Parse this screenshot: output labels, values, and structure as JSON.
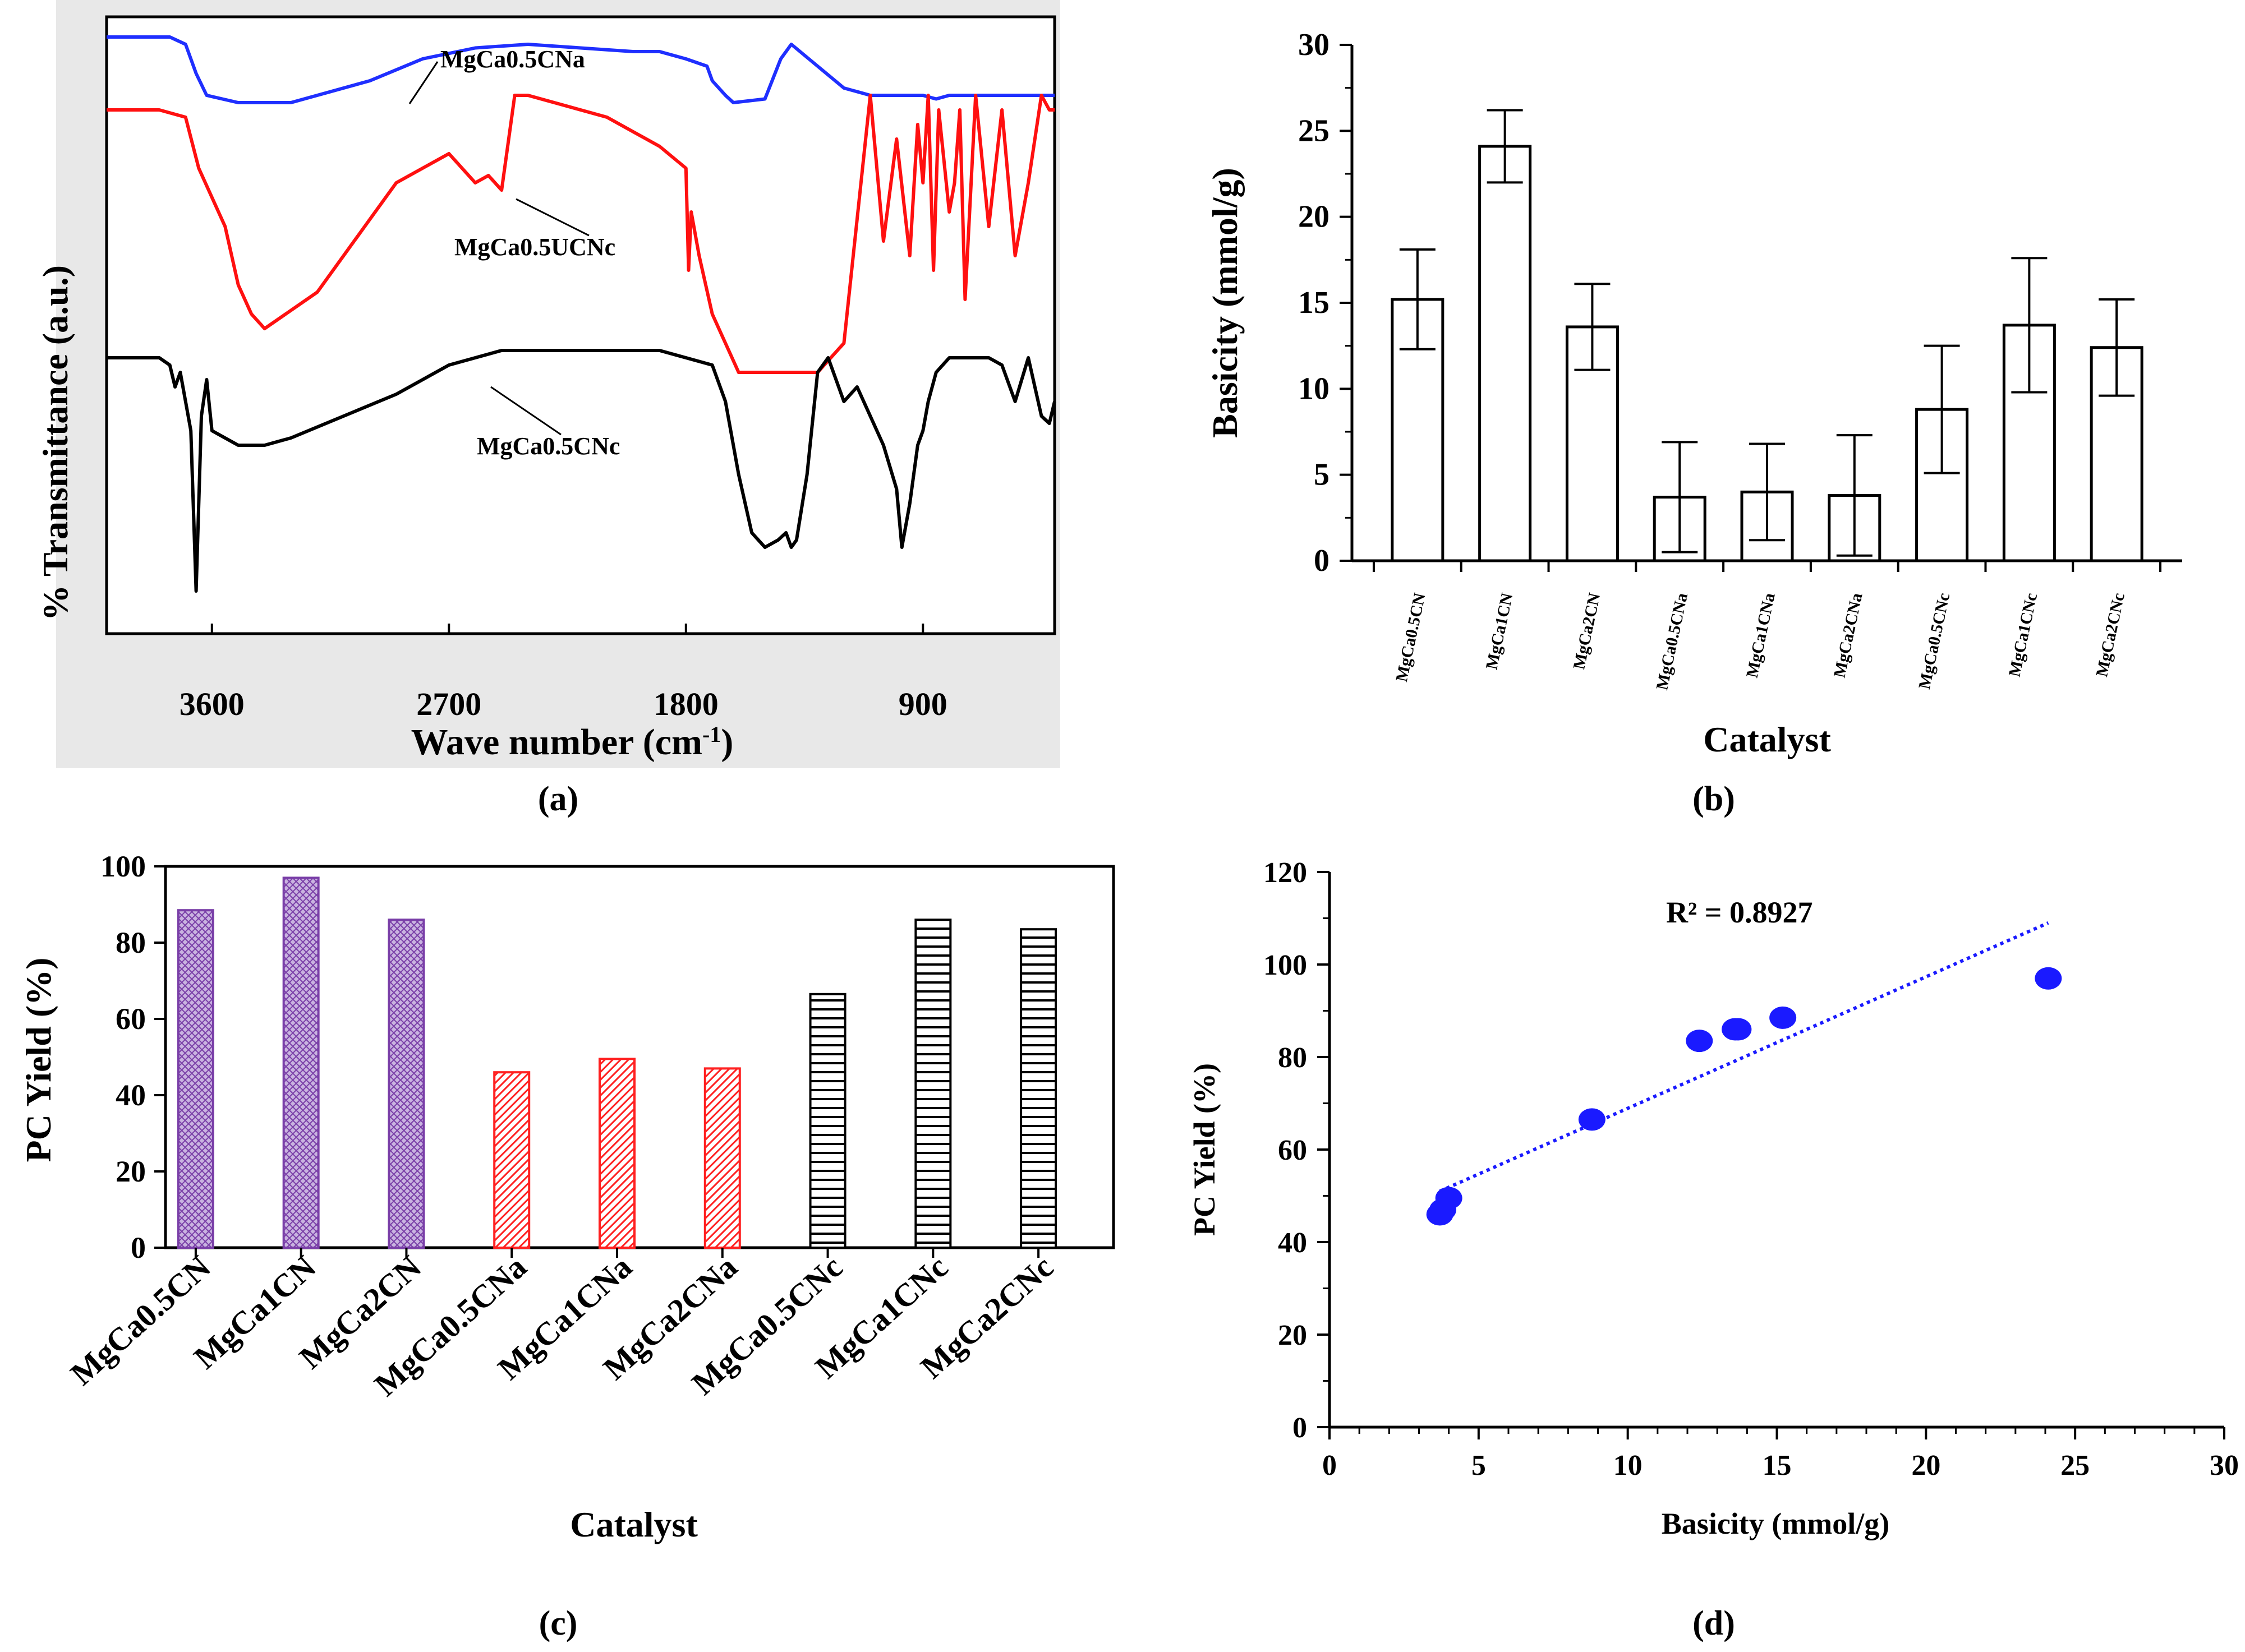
{
  "colors": {
    "blue": "#1f2fff",
    "red": "#ff1010",
    "black": "#000000",
    "purple": "#7a3fa8",
    "purpleFill": "#b59ad3",
    "redBar": "#ff3030",
    "scatter": "#1a1aff"
  },
  "chart_data": [
    {
      "panel": "a",
      "caption": "(a)",
      "type": "line",
      "title": "",
      "xlabel": "Wave number (cm",
      "xlabel_sup": "-1",
      "xlabel_end": ")",
      "ylabel": "% Transmittance (a.u.)",
      "xlim": [
        4000,
        400
      ],
      "xreversed": true,
      "ticks": [
        "3600",
        "2700",
        "1800",
        "900"
      ],
      "series": [
        {
          "name": "MgCa0.5CNa",
          "color": "#1f2fff",
          "x": [
            4000,
            3760,
            3700,
            3660,
            3620,
            3500,
            3400,
            3300,
            3000,
            2800,
            2600,
            2400,
            2200,
            2000,
            1900,
            1800,
            1720,
            1700,
            1650,
            1620,
            1500,
            1440,
            1400,
            1300,
            1200,
            1100,
            1000,
            900,
            850,
            800,
            700,
            600,
            500,
            400
          ],
          "y": [
            90,
            90,
            89,
            85,
            82,
            81,
            81,
            81,
            84,
            87,
            88.5,
            89,
            88.5,
            88,
            88,
            87,
            86,
            84,
            82,
            81,
            81.5,
            87,
            89,
            86,
            83,
            82,
            82,
            82,
            81.5,
            82,
            82,
            82,
            82,
            82
          ]
        },
        {
          "name": "MgCa0.5UCNc",
          "color": "#ff1010",
          "x": [
            4000,
            3800,
            3700,
            3650,
            3600,
            3550,
            3500,
            3450,
            3400,
            3200,
            3000,
            2900,
            2800,
            2700,
            2600,
            2550,
            2500,
            2450,
            2400,
            2300,
            2100,
            1900,
            1800,
            1790,
            1780,
            1750,
            1700,
            1600,
            1550,
            1500,
            1400,
            1300,
            1200,
            1100,
            1050,
            1000,
            950,
            920,
            900,
            880,
            860,
            840,
            800,
            780,
            760,
            740,
            700,
            650,
            600,
            550,
            500,
            450,
            420,
            400
          ],
          "y": [
            80,
            80,
            79,
            72,
            68,
            64,
            56,
            52,
            50,
            55,
            65,
            70,
            72,
            74,
            70,
            71,
            69,
            82,
            82,
            81,
            79,
            75,
            72,
            58,
            66,
            60,
            52,
            44,
            44,
            44,
            44,
            44,
            48,
            82,
            62,
            76,
            60,
            78,
            70,
            82,
            58,
            80,
            66,
            70,
            80,
            54,
            82,
            64,
            80,
            60,
            70,
            82,
            80,
            80
          ]
        },
        {
          "name": "MgCa0.5CNc",
          "color": "#000000",
          "x": [
            4000,
            3800,
            3760,
            3740,
            3720,
            3700,
            3680,
            3660,
            3640,
            3620,
            3600,
            3500,
            3400,
            3300,
            3100,
            2900,
            2700,
            2500,
            2300,
            2100,
            1900,
            1800,
            1700,
            1650,
            1600,
            1550,
            1500,
            1450,
            1420,
            1400,
            1380,
            1340,
            1300,
            1260,
            1200,
            1150,
            1100,
            1050,
            1000,
            980,
            950,
            920,
            900,
            880,
            850,
            800,
            750,
            700,
            650,
            600,
            550,
            500,
            450,
            420,
            400
          ],
          "y": [
            46,
            46,
            45,
            42,
            44,
            40,
            36,
            14,
            38,
            43,
            36,
            34,
            34,
            35,
            38,
            41,
            45,
            47,
            47,
            47,
            47,
            46,
            45,
            40,
            30,
            22,
            20,
            21,
            22,
            20,
            21,
            30,
            44,
            46,
            40,
            42,
            38,
            34,
            28,
            20,
            26,
            34,
            36,
            40,
            44,
            46,
            46,
            46,
            46,
            45,
            40,
            46,
            38,
            37,
            40
          ]
        }
      ],
      "annotations": [
        "MgCa0.5CNa",
        "MgCa0.5UCNc",
        "MgCa0.5CNc"
      ]
    },
    {
      "panel": "b",
      "caption": "(b)",
      "type": "bar",
      "xlabel": "Catalyst",
      "ylabel": "Basicity (mmol/g)",
      "ylim": [
        0,
        30
      ],
      "yticks": [
        "0",
        "5",
        "10",
        "15",
        "20",
        "25",
        "30"
      ],
      "categories": [
        "MgCa0.5CN",
        "MgCa1CN",
        "MgCa2CN",
        "MgCa0.5CNa",
        "MgCa1CNa",
        "MgCa2CNa",
        "MgCa0.5CNc",
        "MgCa1CNc",
        "MgCa2CNc"
      ],
      "values": [
        15.2,
        24.1,
        13.6,
        3.7,
        4.0,
        3.8,
        8.8,
        13.7,
        12.4
      ],
      "errors": [
        2.9,
        2.1,
        2.5,
        3.2,
        2.8,
        3.5,
        3.7,
        3.9,
        2.8
      ]
    },
    {
      "panel": "c",
      "caption": "(c)",
      "type": "bar",
      "xlabel": "Catalyst",
      "ylabel": "PC Yield (%)",
      "ylim": [
        0,
        100
      ],
      "yticks": [
        "0",
        "20",
        "40",
        "60",
        "80",
        "100"
      ],
      "categories": [
        "MgCa0.5CN",
        "MgCa1CN",
        "MgCa2CN",
        "MgCa0.5CNa",
        "MgCa1CNa",
        "MgCa2CNa",
        "MgCa0.5CNc",
        "MgCa1CNc",
        "MgCa2CNc"
      ],
      "values": [
        88.5,
        97,
        86,
        46,
        49.5,
        47,
        66.5,
        86,
        83.5
      ],
      "groups": [
        "purple",
        "purple",
        "purple",
        "red",
        "red",
        "red",
        "black",
        "black",
        "black"
      ]
    },
    {
      "panel": "d",
      "caption": "(d)",
      "type": "scatter",
      "xlabel": "Basicity (mmol/g)",
      "ylabel": "PC Yield (%)",
      "xlim": [
        0,
        30
      ],
      "ylim": [
        0,
        120
      ],
      "xticks": [
        "0",
        "5",
        "10",
        "15",
        "20",
        "25",
        "30"
      ],
      "yticks": [
        "0",
        "20",
        "40",
        "60",
        "80",
        "100",
        "120"
      ],
      "x": [
        3.7,
        3.8,
        4.0,
        8.8,
        12.4,
        13.6,
        13.7,
        15.2,
        24.1
      ],
      "y": [
        46,
        47,
        49.5,
        66.5,
        83.5,
        86,
        86,
        88.5,
        97
      ],
      "trendline": {
        "x": [
          3.7,
          24.1
        ],
        "y": [
          51,
          109
        ]
      },
      "annotation": "R² = 0.8927"
    }
  ]
}
